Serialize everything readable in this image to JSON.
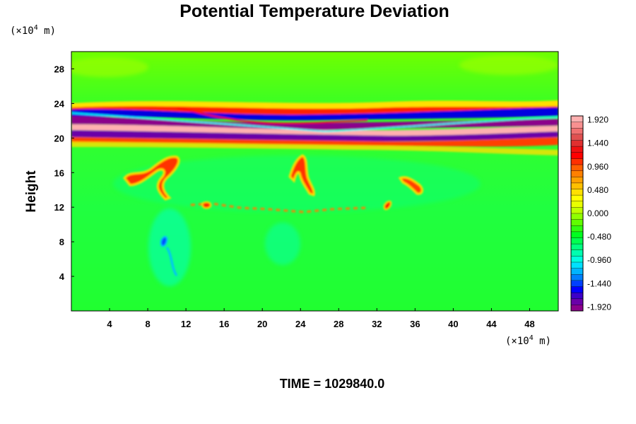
{
  "chart_data": {
    "type": "heatmap",
    "title": "Potential Temperature Deviation",
    "ylabel": "Height",
    "xlabel": "",
    "x_unit": {
      "prefix": "(×10",
      "exp": "4",
      "suffix": " m)"
    },
    "y_unit": {
      "prefix": "(×10",
      "exp": "4",
      "suffix": " m)"
    },
    "time_label": "TIME = 1029840.0",
    "xlim": [
      0,
      51
    ],
    "ylim": [
      0,
      30
    ],
    "x_ticks": [
      "4",
      "8",
      "12",
      "16",
      "20",
      "24",
      "28",
      "32",
      "36",
      "40",
      "44",
      "48"
    ],
    "x_tick_values": [
      4,
      8,
      12,
      16,
      20,
      24,
      28,
      32,
      36,
      40,
      44,
      48
    ],
    "y_ticks": [
      "4",
      "8",
      "12",
      "16",
      "20",
      "24",
      "28"
    ],
    "y_tick_values": [
      4,
      8,
      12,
      16,
      20,
      24,
      28
    ],
    "colorbar": {
      "labels": [
        "1.920",
        "1.440",
        "0.960",
        "0.480",
        "0.000",
        "-0.480",
        "-0.960",
        "-1.440",
        "-1.920"
      ],
      "min": -2.0,
      "max": 2.0,
      "levels": 33,
      "colors": [
        "#8b008b",
        "#6a00a8",
        "#3c00c8",
        "#0000ff",
        "#0040ff",
        "#0080ff",
        "#00b4ff",
        "#00e0ff",
        "#00ffe0",
        "#00ffb0",
        "#00ff80",
        "#00ff50",
        "#00ff20",
        "#30ff10",
        "#60ff00",
        "#90ff00",
        "#c0ff00",
        "#e8ff00",
        "#ffff00",
        "#ffe000",
        "#ffc000",
        "#ffa000",
        "#ff8000",
        "#ff6000",
        "#ff3000",
        "#ff0000",
        "#f01010",
        "#e03030",
        "#e05050",
        "#f07070",
        "#f89090",
        "#ffb0b0"
      ]
    },
    "features": [
      {
        "name": "tropopause upper band",
        "y": 22.6,
        "value": 1.6
      },
      {
        "name": "tropopause blue band",
        "y": 21.8,
        "value": -1.3
      },
      {
        "name": "tropopause cold band",
        "y": 21.2,
        "value": -1.9
      },
      {
        "name": "tropopause warm core",
        "y": 20.6,
        "value": 1.9
      },
      {
        "name": "tropopause lower cold band",
        "y": 19.9,
        "value": -1.9
      },
      {
        "name": "tropopause lower warm band",
        "y": 19.3,
        "value": 1.2
      },
      {
        "name": "warm filament left",
        "x": 7.5,
        "y": 15.8,
        "value": 1.5
      },
      {
        "name": "warm filament center",
        "x": 24.2,
        "y": 16.2,
        "value": 1.6
      },
      {
        "name": "warm filament right",
        "x": 35.5,
        "y": 14.8,
        "value": 1.2
      },
      {
        "name": "cold plume",
        "x": 9.6,
        "y": 7.8,
        "value": -1.0
      }
    ]
  }
}
